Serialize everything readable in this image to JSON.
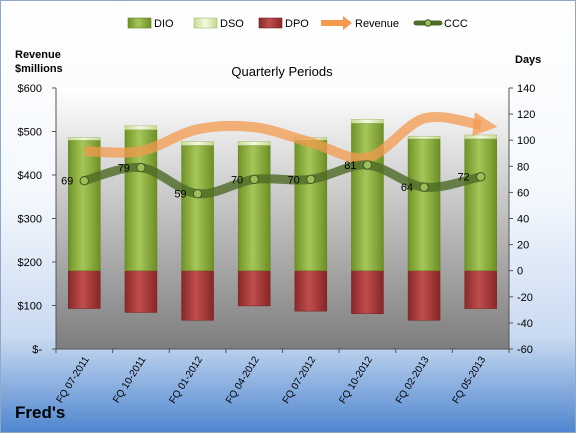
{
  "chart_data": {
    "type": "bar",
    "title": "Quarterly Periods",
    "company": "Fred's",
    "left_axis": {
      "label_line1": "Revenue",
      "label_line2": "$millions",
      "ticks": [
        "$-",
        "$100",
        "$200",
        "$300",
        "$400",
        "$500",
        "$600"
      ],
      "ylim": [
        0,
        600
      ]
    },
    "right_axis": {
      "label": "Days",
      "ticks": [
        "-60",
        "-40",
        "-20",
        "0",
        "20",
        "40",
        "60",
        "80",
        "100",
        "120",
        "140"
      ],
      "ylim": [
        -60,
        140
      ]
    },
    "categories": [
      "FQ 07-2011",
      "FQ 10-2011",
      "FQ 01-2012",
      "FQ 04-2012",
      "FQ 07-2012",
      "FQ 10-2012",
      "FQ 02-2013",
      "FQ 05-2013"
    ],
    "series": [
      {
        "name": "DIO",
        "kind": "bar",
        "axis": "right",
        "color": "#8fb33a",
        "values": [
          100,
          108,
          96,
          96,
          100,
          113,
          101,
          101
        ]
      },
      {
        "name": "DSO",
        "kind": "bar",
        "axis": "right",
        "color": "#e8f3c4",
        "values": [
          2,
          3,
          3,
          3,
          2,
          3,
          2,
          3
        ]
      },
      {
        "name": "DPO",
        "kind": "bar",
        "axis": "right",
        "color": "#a83a3a",
        "values": [
          -29,
          -32,
          -38,
          -27,
          -31,
          -33,
          -38,
          -29
        ]
      },
      {
        "name": "Revenue",
        "kind": "line",
        "axis": "left",
        "color": "#f39a4e",
        "values": [
          455,
          455,
          505,
          510,
          475,
          440,
          530,
          515
        ]
      },
      {
        "name": "CCC",
        "kind": "line",
        "axis": "right",
        "color": "#52722a",
        "values": [
          69,
          79,
          59,
          70,
          70,
          81,
          64,
          72
        ],
        "data_labels": [
          "69",
          "79",
          "59",
          "70",
          "70",
          "81",
          "64",
          "72"
        ]
      }
    ],
    "legend": {
      "placement": "top"
    },
    "grid": false
  }
}
